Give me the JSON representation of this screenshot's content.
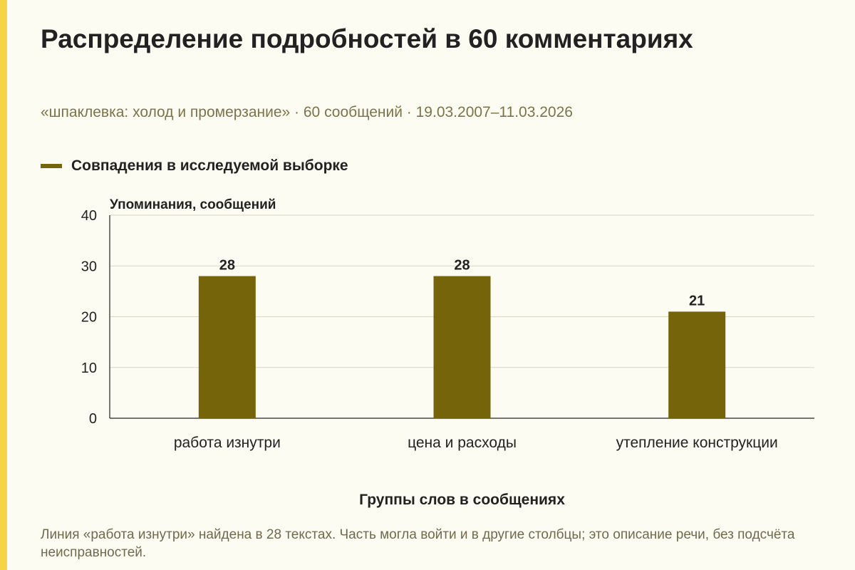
{
  "page": {
    "title": "Распределение подробностей в 60 комментариях",
    "subtitle": "«шпаклевка: холод и промерзание» · 60 сообщений · 19.03.2007–11.03.2026",
    "footnote": "Линия «работа изнутри» найдена в 28 текстах. Часть могла войти и в другие столбцы; это описание речи, без подсчёта неисправностей.",
    "accent_color": "#f5d547",
    "background_color": "#fdfcf3"
  },
  "chart_data": {
    "type": "bar",
    "categories": [
      "работа изнутри",
      "цена и расходы",
      "утепление конструкции"
    ],
    "series": [
      {
        "name": "Совпадения в исследуемой выборке",
        "values": [
          28,
          28,
          21
        ],
        "color": "#76640b"
      }
    ],
    "ylabel": "Упоминания, сообщений",
    "xlabel": "Группы слов в сообщениях",
    "ylim": [
      0,
      40
    ],
    "yticks": [
      0,
      10,
      20,
      30,
      40
    ],
    "grid": true,
    "legend": "top-left",
    "data_labels": true
  }
}
